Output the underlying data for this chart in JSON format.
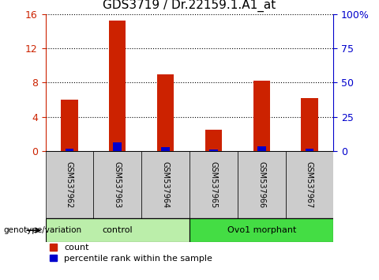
{
  "title": "GDS3719 / Dr.22159.1.A1_at",
  "samples": [
    "GSM537962",
    "GSM537963",
    "GSM537964",
    "GSM537965",
    "GSM537966",
    "GSM537967"
  ],
  "count_values": [
    6.0,
    15.2,
    9.0,
    2.5,
    8.2,
    6.2
  ],
  "percentile_values": [
    2.0,
    6.5,
    3.0,
    1.5,
    3.5,
    2.0
  ],
  "left_ylim": [
    0,
    16
  ],
  "left_yticks": [
    0,
    4,
    8,
    12,
    16
  ],
  "right_ylim": [
    0,
    100
  ],
  "right_yticks": [
    0,
    25,
    50,
    75,
    100
  ],
  "right_yticklabels": [
    "0",
    "25",
    "50",
    "75",
    "100%"
  ],
  "groups": [
    {
      "label": "control",
      "indices": [
        0,
        1,
        2
      ]
    },
    {
      "label": "Ovo1 morphant",
      "indices": [
        3,
        4,
        5
      ]
    }
  ],
  "bar_color_red": "#CC2200",
  "bar_color_blue": "#0000CC",
  "bar_width": 0.35,
  "blue_bar_width": 0.18,
  "background_color": "#FFFFFF",
  "plot_bg_color": "#FFFFFF",
  "tick_label_color_left": "#CC2200",
  "tick_label_color_right": "#0000CC",
  "genotype_label": "genotype/variation",
  "legend_count": "count",
  "legend_percentile": "percentile rank within the sample",
  "group_box_color_control": "#BBEEAA",
  "group_box_color_ovo1": "#44DD44",
  "sample_box_color": "#CCCCCC",
  "left_axis_color": "#CC2200",
  "right_axis_color": "#0000CC"
}
